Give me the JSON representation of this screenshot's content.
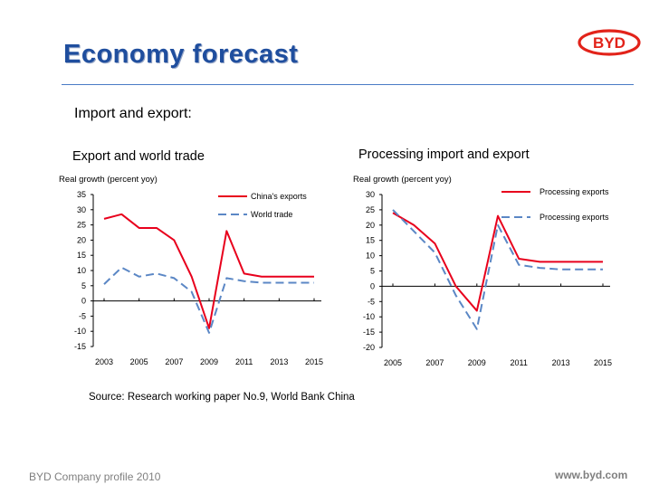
{
  "slide": {
    "title": "Economy forecast",
    "subtitle": "Import and export:",
    "left_heading": "Export and world trade",
    "right_heading": "Processing import and export",
    "source": "Source: Research working paper No.9, World Bank China",
    "footer_left": "BYD Company profile 2010",
    "footer_right": "www.byd.com",
    "logo_text": "BYD"
  },
  "colors": {
    "title": "#1f4e9e",
    "red_series": "#e8001c",
    "blue_series": "#5b87c5",
    "rule": "#4a7bc6",
    "logo": "#e2231a"
  },
  "chart_data": [
    {
      "type": "line",
      "ylabel": "Real growth (percent yoy)",
      "ylim": [
        -15,
        35
      ],
      "yticks": [
        35,
        30,
        25,
        20,
        15,
        10,
        5,
        0,
        -5,
        -10,
        -15
      ],
      "xlim": [
        2003,
        2015
      ],
      "xticks": [
        2003,
        2005,
        2007,
        2009,
        2011,
        2013,
        2015
      ],
      "series": [
        {
          "name": "China's exports",
          "style": "solid",
          "color": "#e8001c",
          "x": [
            2003,
            2004,
            2005,
            2006,
            2007,
            2008,
            2009,
            2010,
            2011,
            2012,
            2013,
            2014,
            2015
          ],
          "values": [
            27,
            28.5,
            24,
            24,
            20,
            8,
            -9,
            23,
            9,
            8,
            8,
            8,
            8
          ]
        },
        {
          "name": "World trade",
          "style": "dashed",
          "color": "#5b87c5",
          "x": [
            2003,
            2004,
            2005,
            2006,
            2007,
            2008,
            2009,
            2010,
            2011,
            2012,
            2013,
            2014,
            2015
          ],
          "values": [
            5.5,
            11,
            8,
            9,
            7.5,
            3,
            -10.5,
            7.5,
            6.5,
            6,
            6,
            6,
            6
          ]
        }
      ]
    },
    {
      "type": "line",
      "ylabel": "Real growth (percent yoy)",
      "ylim": [
        -20,
        30
      ],
      "yticks": [
        30,
        25,
        20,
        15,
        10,
        5,
        0,
        -5,
        -10,
        -15,
        -20
      ],
      "xlim": [
        2005,
        2015
      ],
      "xticks": [
        2005,
        2007,
        2009,
        2011,
        2013,
        2015
      ],
      "series": [
        {
          "name": "Processing exports",
          "style": "solid",
          "color": "#e8001c",
          "x": [
            2005,
            2006,
            2007,
            2008,
            2009,
            2010,
            2011,
            2012,
            2013,
            2014,
            2015
          ],
          "values": [
            24,
            20,
            14,
            0,
            -8,
            23,
            9,
            8,
            8,
            8,
            8
          ]
        },
        {
          "name": "Processing exports",
          "style": "dashed",
          "color": "#5b87c5",
          "x": [
            2005,
            2006,
            2007,
            2008,
            2009,
            2010,
            2011,
            2012,
            2013,
            2014,
            2015
          ],
          "values": [
            25,
            18,
            11,
            -3,
            -14,
            20,
            7,
            6,
            5.5,
            5.5,
            5.5
          ]
        }
      ]
    }
  ]
}
